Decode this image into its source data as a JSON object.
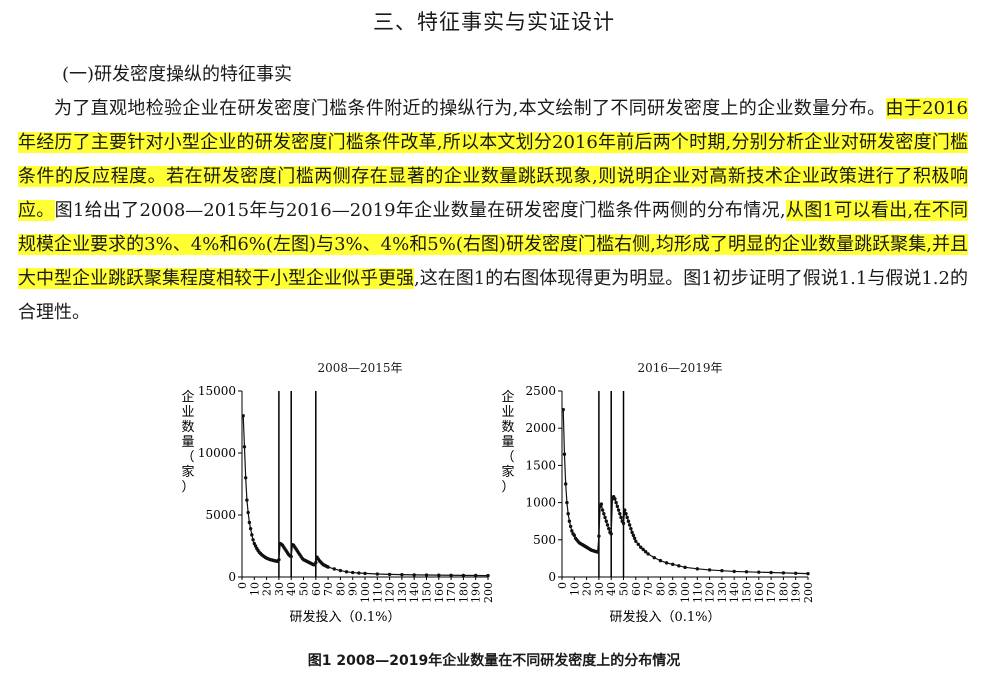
{
  "section_heading": "三、特征事实与实证设计",
  "subsection_heading": "(一)研发密度操纵的特征事实",
  "paragraph": {
    "segments": [
      {
        "text": "为了直观地检验企业在研发密度门槛条件附近的操纵行为,本文绘制了不同研发密度上的企业数量分布。",
        "highlight": false
      },
      {
        "text": "由于2016年经历了主要针对小型企业的研发密度门槛条件改革,所以本文划分2016年前后两个时期,分别分析企业对研发密度门槛条件的反应程度。若在研发密度门槛两侧存在显著的企业数量跳跃现象,则说明企业对高新技术企业政策进行了积极响应。",
        "highlight": true
      },
      {
        "text": "图1给出了2008—2015年与2016—2019年企业数量在研发密度门槛条件两侧的分布情况,",
        "highlight": false
      },
      {
        "text": "从图1可以看出,在不同规模企业要求的3%、4%和6%(左图)与3%、4%和5%(右图)研发密度门槛右侧,均形成了明显的企业数量跳跃聚集,并且大中型企业跳跃聚集程度相较于小型企业似乎更强",
        "highlight": true
      },
      {
        "text": ",这在图1的右图体现得更为明显。图1初步证明了假说1.1与假说1.2的合理性。",
        "highlight": false
      }
    ]
  },
  "highlight_color": "#ffff33",
  "chart_data": [
    {
      "type": "line",
      "title": "2008—2015年",
      "ylabel": "企业数量（家）",
      "xlabel": "研发投入（0.1%）",
      "xlim": [
        0,
        200
      ],
      "ylim": [
        0,
        15000
      ],
      "x_ticks": [
        0,
        10,
        20,
        30,
        40,
        50,
        60,
        70,
        80,
        90,
        100,
        110,
        120,
        130,
        140,
        150,
        160,
        170,
        180,
        190,
        200
      ],
      "y_ticks": [
        0,
        5000,
        10000,
        15000
      ],
      "vlines": [
        30,
        40,
        60
      ],
      "series": [
        {
          "x": [
            1,
            2,
            3,
            4,
            5,
            6,
            7,
            8,
            9,
            10,
            11,
            12,
            13,
            14,
            15,
            16,
            17,
            18,
            19,
            20,
            21,
            22,
            23,
            24,
            25,
            26,
            27,
            28,
            29,
            30,
            31,
            32,
            33,
            34,
            35,
            36,
            37,
            38,
            39,
            40,
            41,
            42,
            43,
            44,
            45,
            46,
            47,
            48,
            49,
            50,
            51,
            52,
            53,
            54,
            55,
            56,
            57,
            58,
            59,
            60,
            61,
            62,
            63,
            64,
            65,
            66,
            67,
            68,
            69,
            70,
            75,
            80,
            85,
            90,
            95,
            100,
            110,
            120,
            130,
            140,
            150,
            160,
            170,
            180,
            190,
            200
          ],
          "y": [
            13000,
            10500,
            8000,
            6200,
            5200,
            4400,
            3900,
            3400,
            3000,
            2700,
            2500,
            2300,
            2150,
            2000,
            1900,
            1800,
            1720,
            1650,
            1580,
            1520,
            1480,
            1440,
            1400,
            1380,
            1350,
            1320,
            1300,
            1280,
            1260,
            1400,
            2700,
            2650,
            2550,
            2400,
            2250,
            2100,
            1950,
            1800,
            1700,
            1650,
            2600,
            2550,
            2400,
            2250,
            2100,
            1950,
            1800,
            1650,
            1500,
            1400,
            1350,
            1300,
            1250,
            1200,
            1150,
            1100,
            1050,
            1000,
            980,
            1150,
            1600,
            1450,
            1300,
            1200,
            1100,
            1000,
            950,
            900,
            850,
            800,
            650,
            520,
            420,
            360,
            320,
            290,
            240,
            210,
            190,
            170,
            160,
            150,
            140,
            130,
            120,
            110
          ]
        }
      ]
    },
    {
      "type": "line",
      "title": "2016—2019年",
      "ylabel": "企业数量（家）",
      "xlabel": "研发投入（0.1%）",
      "xlim": [
        0,
        200
      ],
      "ylim": [
        0,
        2500
      ],
      "x_ticks": [
        0,
        10,
        20,
        30,
        40,
        50,
        60,
        70,
        80,
        90,
        100,
        110,
        120,
        130,
        140,
        150,
        160,
        170,
        180,
        190,
        200
      ],
      "y_ticks": [
        0,
        500,
        1000,
        1500,
        2000,
        2500
      ],
      "vlines": [
        30,
        40,
        50
      ],
      "series": [
        {
          "x": [
            1,
            2,
            3,
            4,
            5,
            6,
            7,
            8,
            9,
            10,
            11,
            12,
            13,
            14,
            15,
            16,
            17,
            18,
            19,
            20,
            21,
            22,
            23,
            24,
            25,
            26,
            27,
            28,
            29,
            30,
            31,
            32,
            33,
            34,
            35,
            36,
            37,
            38,
            39,
            40,
            41,
            42,
            43,
            44,
            45,
            46,
            47,
            48,
            49,
            50,
            51,
            52,
            53,
            54,
            55,
            56,
            57,
            58,
            59,
            60,
            62,
            64,
            66,
            68,
            70,
            75,
            80,
            85,
            90,
            95,
            100,
            110,
            120,
            130,
            140,
            150,
            160,
            170,
            180,
            190,
            200
          ],
          "y": [
            2250,
            1650,
            1250,
            1000,
            850,
            750,
            680,
            620,
            580,
            560,
            520,
            500,
            480,
            460,
            450,
            440,
            430,
            420,
            410,
            400,
            390,
            380,
            370,
            360,
            355,
            350,
            345,
            340,
            335,
            550,
            950,
            980,
            900,
            850,
            800,
            750,
            700,
            650,
            600,
            580,
            1050,
            1080,
            1050,
            1000,
            950,
            900,
            850,
            800,
            750,
            720,
            900,
            850,
            800,
            750,
            700,
            650,
            600,
            560,
            520,
            480,
            440,
            400,
            370,
            340,
            310,
            260,
            220,
            190,
            170,
            150,
            130,
            110,
            95,
            85,
            75,
            70,
            65,
            60,
            55,
            50,
            45
          ]
        }
      ]
    }
  ],
  "figure_caption": "图1    2008—2019年企业数量在不同研发密度上的分布情况"
}
